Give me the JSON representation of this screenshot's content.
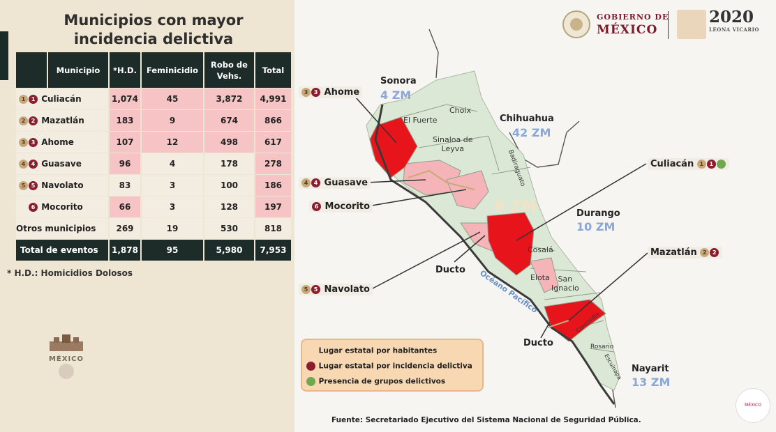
{
  "title": {
    "line1": "Municipios con mayor",
    "line2": "incidencia delictiva"
  },
  "table": {
    "headers": [
      "Municipio",
      "*H.D.",
      "Feminicidio",
      "Robo de Vehs.",
      "Total"
    ],
    "rows": [
      {
        "rank_pop": "1",
        "rank_crime": "1",
        "name": "Culiacán",
        "hd": "1,074",
        "fem": "45",
        "robo": "3,872",
        "total": "4,991"
      },
      {
        "rank_pop": "2",
        "rank_crime": "2",
        "name": "Mazatlán",
        "hd": "183",
        "fem": "9",
        "robo": "674",
        "total": "866"
      },
      {
        "rank_pop": "3",
        "rank_crime": "3",
        "name": "Ahome",
        "hd": "107",
        "fem": "12",
        "robo": "498",
        "total": "617"
      },
      {
        "rank_pop": "4",
        "rank_crime": "4",
        "name": "Guasave",
        "hd": "96",
        "fem": "4",
        "robo": "178",
        "total": "278"
      },
      {
        "rank_pop": "5",
        "rank_crime": "5",
        "name": "Navolato",
        "hd": "83",
        "fem": "3",
        "robo": "100",
        "total": "186"
      },
      {
        "rank_pop": "",
        "rank_crime": "6",
        "name": "Mocorito",
        "hd": "66",
        "fem": "3",
        "robo": "128",
        "total": "197"
      }
    ],
    "others": {
      "name": "Otros municipios",
      "hd": "269",
      "fem": "19",
      "robo": "530",
      "total": "818"
    },
    "total": {
      "name": "Total de eventos",
      "hd": "1,878",
      "fem": "95",
      "robo": "5,980",
      "total": "7,953"
    }
  },
  "footnote": "* H.D.: Homicidios Dolosos",
  "left_logo_text": "MÉXICO",
  "header": {
    "gov_line1": "GOBIERNO DE",
    "gov_line2": "MÉXICO",
    "year": "2020",
    "year_sub": "LEONA VICARIO"
  },
  "map": {
    "states": [
      {
        "name": "Sonora",
        "zm": "4 ZM"
      },
      {
        "name": "Chihuahua",
        "zm": "42 ZM"
      },
      {
        "name": "Durango",
        "zm": "10 ZM"
      },
      {
        "name": "Nayarit",
        "zm": "13 ZM"
      }
    ],
    "center_zm": "9 ZM",
    "municipios": {
      "el_fuerte": "El Fuerte",
      "choix": "Choix",
      "sinaloa_line1": "Sinaloa de",
      "sinaloa_line2": "Leyva",
      "badiraguato": "Badiraguato",
      "cosala": "Cosalá",
      "elota": "Elota",
      "san_ignacio_1": "San",
      "san_ignacio_2": "Ignacio",
      "concordia": "Concordia",
      "rosario": "Rosario",
      "escuinapa": "Escuinapa"
    },
    "ocean": "Océano Pacífico",
    "ducto": "Ducto",
    "callouts": [
      {
        "name": "Ahome",
        "pop": "3",
        "crime": "3"
      },
      {
        "name": "Guasave",
        "pop": "4",
        "crime": "4"
      },
      {
        "name": "Mocorito",
        "crime": "6"
      },
      {
        "name": "Navolato",
        "pop": "5",
        "crime": "5"
      },
      {
        "name": "Culiacán",
        "pop": "1",
        "crime": "1",
        "group": "1"
      },
      {
        "name": "Mazatlán",
        "pop": "2",
        "crime": "2"
      }
    ]
  },
  "legend": {
    "items": [
      "Lugar estatal por habitantes",
      "Lugar estatal por incidencia delictiva",
      "Presencia de grupos delictivos"
    ]
  },
  "source": "Fuente:  Secretariado Ejecutivo del Sistema Nacional de Seguridad Pública.",
  "seal_br": "MÉXICO",
  "colors": {
    "dark_green": "#1d2c28",
    "highlight_pink": "#f6c4c4",
    "crime_red": "#e8141c",
    "map_green": "#dce8d6",
    "map_pink": "#f4b4b8",
    "guinda": "#7d1a2b"
  }
}
